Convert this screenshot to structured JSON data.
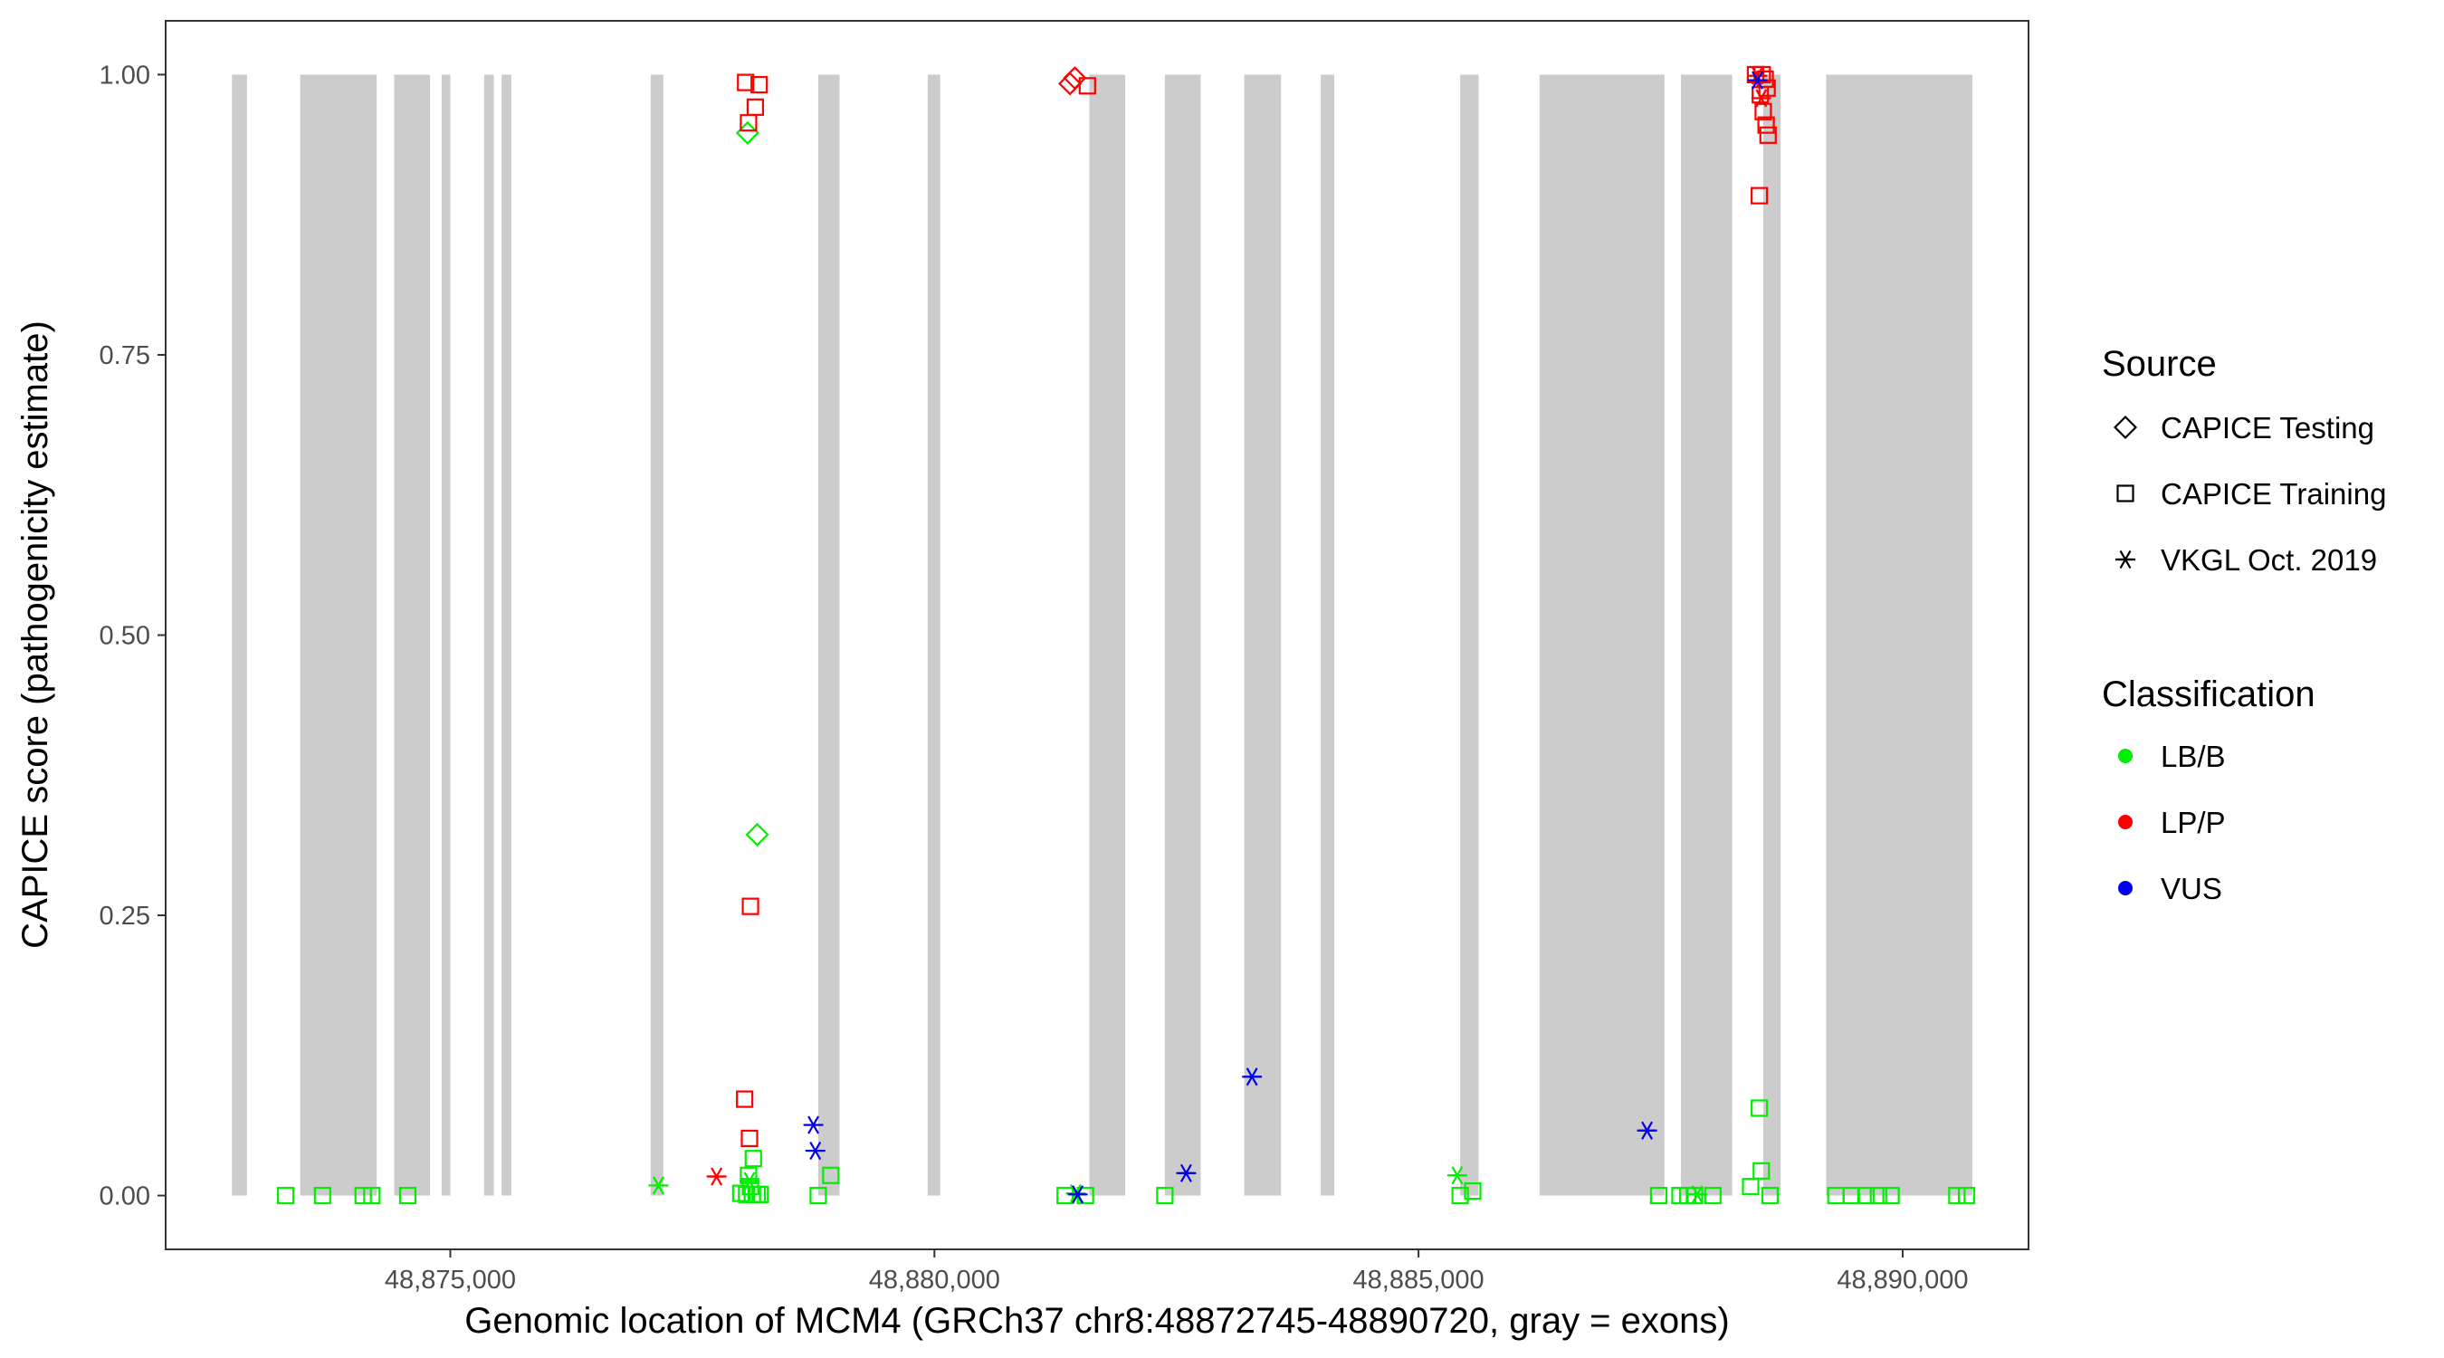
{
  "chart_data": {
    "type": "scatter",
    "title": "",
    "xlabel": "Genomic location of MCM4 (GRCh37 chr8:48872745-48890720, gray = exons)",
    "ylabel": "CAPICE score (pathogenicity estimate)",
    "xlim": [
      48872060,
      48891300
    ],
    "ylim": [
      -0.048,
      1.048
    ],
    "x_ticks": [
      {
        "value": 48875000,
        "label": "48,875,000"
      },
      {
        "value": 48880000,
        "label": "48,880,000"
      },
      {
        "value": 48885000,
        "label": "48,885,000"
      },
      {
        "value": 48890000,
        "label": "48,890,000"
      }
    ],
    "y_ticks": [
      {
        "value": 0,
        "label": "0.00"
      },
      {
        "value": 0.25,
        "label": "0.25"
      },
      {
        "value": 0.5,
        "label": "0.50"
      },
      {
        "value": 0.75,
        "label": "0.75"
      },
      {
        "value": 1,
        "label": "1.00"
      }
    ],
    "grid": false,
    "exons": [
      [
        48872745,
        48872900
      ],
      [
        48873450,
        48874240
      ],
      [
        48874420,
        48874790
      ],
      [
        48874910,
        48875000
      ],
      [
        48875350,
        48875450
      ],
      [
        48875530,
        48875630
      ],
      [
        48877070,
        48877200
      ],
      [
        48878800,
        48879020
      ],
      [
        48879930,
        48880060
      ],
      [
        48881600,
        48881970
      ],
      [
        48882380,
        48882750
      ],
      [
        48883200,
        48883580
      ],
      [
        48883990,
        48884130
      ],
      [
        48885430,
        48885620
      ],
      [
        48886250,
        48887540
      ],
      [
        48887710,
        48888240
      ],
      [
        48888560,
        48888740
      ],
      [
        48889210,
        48890720
      ]
    ],
    "legend_position": "right",
    "legend": {
      "source_title": "Source",
      "source_entries": [
        {
          "label": "CAPICE Testing",
          "shape": "diamond"
        },
        {
          "label": "CAPICE Training",
          "shape": "square"
        },
        {
          "label": "VKGL Oct. 2019",
          "shape": "asterisk"
        }
      ],
      "classification_title": "Classification",
      "classification_entries": [
        {
          "label": "LB/B",
          "color": "#00ee00"
        },
        {
          "label": "LP/P",
          "color": "#ff0000"
        },
        {
          "label": "VUS",
          "color": "#0000ee"
        }
      ]
    },
    "colors": {
      "LB/B": "#00ee00",
      "LP/P": "#ff0000",
      "VUS": "#0000ee",
      "exon": "#cccccc"
    },
    "points": [
      {
        "x": 48873300,
        "y": 0.0,
        "source": "CAPICE Training",
        "class": "LB/B"
      },
      {
        "x": 48873680,
        "y": 0.0,
        "source": "CAPICE Training",
        "class": "LB/B"
      },
      {
        "x": 48874100,
        "y": 0.0,
        "source": "CAPICE Training",
        "class": "LB/B"
      },
      {
        "x": 48874190,
        "y": 0.0,
        "source": "CAPICE Training",
        "class": "LB/B"
      },
      {
        "x": 48874560,
        "y": 0.0,
        "source": "CAPICE Training",
        "class": "LB/B"
      },
      {
        "x": 48877150,
        "y": 0.009,
        "source": "VKGL Oct. 2019",
        "class": "LB/B"
      },
      {
        "x": 48877750,
        "y": 0.017,
        "source": "VKGL Oct. 2019",
        "class": "LP/P"
      },
      {
        "x": 48878070,
        "y": 0.948,
        "source": "CAPICE Testing",
        "class": "LB/B"
      },
      {
        "x": 48878170,
        "y": 0.322,
        "source": "CAPICE Testing",
        "class": "LB/B"
      },
      {
        "x": 48878050,
        "y": 0.993,
        "source": "CAPICE Training",
        "class": "LP/P"
      },
      {
        "x": 48878190,
        "y": 0.991,
        "source": "CAPICE Training",
        "class": "LP/P"
      },
      {
        "x": 48878150,
        "y": 0.971,
        "source": "CAPICE Training",
        "class": "LP/P"
      },
      {
        "x": 48878080,
        "y": 0.957,
        "source": "CAPICE Training",
        "class": "LP/P"
      },
      {
        "x": 48878100,
        "y": 0.258,
        "source": "CAPICE Training",
        "class": "LP/P"
      },
      {
        "x": 48878040,
        "y": 0.086,
        "source": "CAPICE Training",
        "class": "LP/P"
      },
      {
        "x": 48878090,
        "y": 0.051,
        "source": "CAPICE Training",
        "class": "LP/P"
      },
      {
        "x": 48878130,
        "y": 0.033,
        "source": "CAPICE Training",
        "class": "LB/B"
      },
      {
        "x": 48878080,
        "y": 0.018,
        "source": "CAPICE Training",
        "class": "LB/B"
      },
      {
        "x": 48878100,
        "y": 0.008,
        "source": "CAPICE Training",
        "class": "LB/B"
      },
      {
        "x": 48878000,
        "y": 0.002,
        "source": "CAPICE Training",
        "class": "LB/B"
      },
      {
        "x": 48878060,
        "y": 0.001,
        "source": "CAPICE Training",
        "class": "LB/B"
      },
      {
        "x": 48878120,
        "y": 0.001,
        "source": "CAPICE Training",
        "class": "LB/B"
      },
      {
        "x": 48878170,
        "y": 0.001,
        "source": "CAPICE Training",
        "class": "LB/B"
      },
      {
        "x": 48878200,
        "y": 0.001,
        "source": "CAPICE Training",
        "class": "LB/B"
      },
      {
        "x": 48878090,
        "y": 0.013,
        "source": "VKGL Oct. 2019",
        "class": "LB/B"
      },
      {
        "x": 48878750,
        "y": 0.063,
        "source": "VKGL Oct. 2019",
        "class": "VUS"
      },
      {
        "x": 48878770,
        "y": 0.04,
        "source": "VKGL Oct. 2019",
        "class": "VUS"
      },
      {
        "x": 48878930,
        "y": 0.018,
        "source": "CAPICE Training",
        "class": "LB/B"
      },
      {
        "x": 48878800,
        "y": 0.0,
        "source": "CAPICE Training",
        "class": "LB/B"
      },
      {
        "x": 48881450,
        "y": 0.997,
        "source": "CAPICE Testing",
        "class": "LP/P"
      },
      {
        "x": 48881400,
        "y": 0.992,
        "source": "CAPICE Testing",
        "class": "LP/P"
      },
      {
        "x": 48881580,
        "y": 0.99,
        "source": "CAPICE Training",
        "class": "LP/P"
      },
      {
        "x": 48881350,
        "y": 0.0,
        "source": "CAPICE Training",
        "class": "LB/B"
      },
      {
        "x": 48881560,
        "y": 0.0,
        "source": "CAPICE Training",
        "class": "LB/B"
      },
      {
        "x": 48881460,
        "y": 0.002,
        "source": "VKGL Oct. 2019",
        "class": "LB/B"
      },
      {
        "x": 48881480,
        "y": 0.001,
        "source": "VKGL Oct. 2019",
        "class": "VUS"
      },
      {
        "x": 48882380,
        "y": 0.0,
        "source": "CAPICE Training",
        "class": "LB/B"
      },
      {
        "x": 48882600,
        "y": 0.02,
        "source": "VKGL Oct. 2019",
        "class": "VUS"
      },
      {
        "x": 48883280,
        "y": 0.106,
        "source": "VKGL Oct. 2019",
        "class": "VUS"
      },
      {
        "x": 48885400,
        "y": 0.018,
        "source": "VKGL Oct. 2019",
        "class": "LB/B"
      },
      {
        "x": 48885430,
        "y": 0.0,
        "source": "CAPICE Training",
        "class": "LB/B"
      },
      {
        "x": 48885560,
        "y": 0.004,
        "source": "CAPICE Training",
        "class": "LB/B"
      },
      {
        "x": 48887360,
        "y": 0.058,
        "source": "VKGL Oct. 2019",
        "class": "VUS"
      },
      {
        "x": 48887480,
        "y": 0.0,
        "source": "CAPICE Training",
        "class": "LB/B"
      },
      {
        "x": 48887700,
        "y": 0.0,
        "source": "CAPICE Training",
        "class": "LB/B"
      },
      {
        "x": 48887780,
        "y": 0.0,
        "source": "CAPICE Training",
        "class": "LB/B"
      },
      {
        "x": 48887850,
        "y": 0.0,
        "source": "CAPICE Training",
        "class": "LB/B"
      },
      {
        "x": 48888040,
        "y": 0.0,
        "source": "CAPICE Training",
        "class": "LB/B"
      },
      {
        "x": 48887880,
        "y": 0.001,
        "source": "VKGL Oct. 2019",
        "class": "LB/B"
      },
      {
        "x": 48888480,
        "y": 1.0,
        "source": "CAPICE Training",
        "class": "LP/P"
      },
      {
        "x": 48888550,
        "y": 1.0,
        "source": "CAPICE Training",
        "class": "LP/P"
      },
      {
        "x": 48888580,
        "y": 0.996,
        "source": "CAPICE Training",
        "class": "LP/P"
      },
      {
        "x": 48888600,
        "y": 0.988,
        "source": "CAPICE Training",
        "class": "LP/P"
      },
      {
        "x": 48888530,
        "y": 0.982,
        "source": "CAPICE Training",
        "class": "LP/P"
      },
      {
        "x": 48888560,
        "y": 0.967,
        "source": "CAPICE Training",
        "class": "LP/P"
      },
      {
        "x": 48888590,
        "y": 0.955,
        "source": "CAPICE Training",
        "class": "LP/P"
      },
      {
        "x": 48888610,
        "y": 0.946,
        "source": "CAPICE Training",
        "class": "LP/P"
      },
      {
        "x": 48888520,
        "y": 0.892,
        "source": "CAPICE Training",
        "class": "LP/P"
      },
      {
        "x": 48888500,
        "y": 0.999,
        "source": "VKGL Oct. 2019",
        "class": "LP/P"
      },
      {
        "x": 48888540,
        "y": 0.979,
        "source": "VKGL Oct. 2019",
        "class": "LP/P"
      },
      {
        "x": 48888500,
        "y": 0.995,
        "source": "VKGL Oct. 2019",
        "class": "VUS"
      },
      {
        "x": 48888520,
        "y": 0.078,
        "source": "CAPICE Training",
        "class": "LB/B"
      },
      {
        "x": 48888540,
        "y": 0.022,
        "source": "CAPICE Training",
        "class": "LB/B"
      },
      {
        "x": 48888430,
        "y": 0.008,
        "source": "CAPICE Training",
        "class": "LB/B"
      },
      {
        "x": 48888630,
        "y": 0.0,
        "source": "CAPICE Training",
        "class": "LB/B"
      },
      {
        "x": 48889310,
        "y": 0.0,
        "source": "CAPICE Training",
        "class": "LB/B"
      },
      {
        "x": 48889470,
        "y": 0.0,
        "source": "CAPICE Training",
        "class": "LB/B"
      },
      {
        "x": 48889620,
        "y": 0.0,
        "source": "CAPICE Training",
        "class": "LB/B"
      },
      {
        "x": 48889750,
        "y": 0.0,
        "source": "CAPICE Training",
        "class": "LB/B"
      },
      {
        "x": 48889880,
        "y": 0.0,
        "source": "CAPICE Training",
        "class": "LB/B"
      },
      {
        "x": 48890560,
        "y": 0.0,
        "source": "CAPICE Training",
        "class": "LB/B"
      },
      {
        "x": 48890660,
        "y": 0.0,
        "source": "CAPICE Training",
        "class": "LB/B"
      }
    ]
  }
}
